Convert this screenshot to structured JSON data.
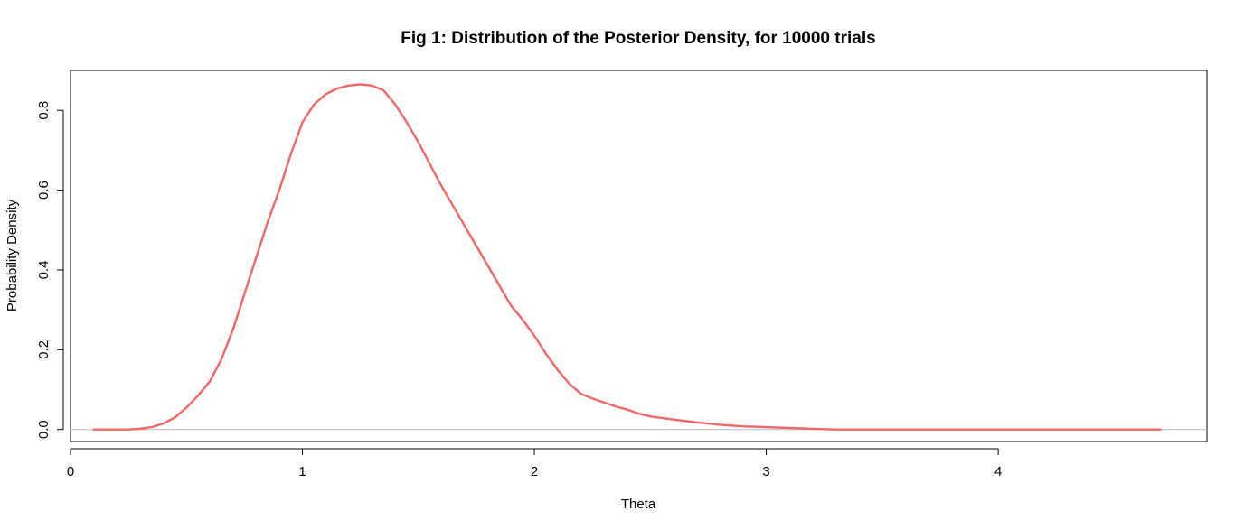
{
  "chart_data": {
    "type": "line",
    "title": "Fig 1: Distribution of the Posterior Density, for 10000 trials",
    "xlabel": "Theta",
    "ylabel": "Probability Density",
    "xlim": [
      0,
      4.9
    ],
    "ylim": [
      -0.03,
      0.9
    ],
    "x_ticks": [
      0,
      1,
      2,
      3,
      4
    ],
    "x_tick_labels": [
      "0",
      "1",
      "2",
      "3",
      "4"
    ],
    "y_ticks": [
      0.0,
      0.2,
      0.4,
      0.6,
      0.8
    ],
    "y_tick_labels": [
      "0.0",
      "0.2",
      "0.4",
      "0.6",
      "0.8"
    ],
    "grid": false,
    "legend": "none",
    "colors": {
      "line": "#ef6767",
      "baseline": "#bebebe",
      "axis": "#000000"
    },
    "series": [
      {
        "x": [
          0.1,
          0.2,
          0.25,
          0.3,
          0.35,
          0.4,
          0.45,
          0.5,
          0.55,
          0.6,
          0.65,
          0.7,
          0.75,
          0.8,
          0.85,
          0.9,
          0.95,
          1.0,
          1.05,
          1.1,
          1.15,
          1.2,
          1.25,
          1.3,
          1.35,
          1.4,
          1.45,
          1.5,
          1.55,
          1.6,
          1.65,
          1.7,
          1.75,
          1.8,
          1.85,
          1.9,
          1.95,
          2.0,
          2.05,
          2.1,
          2.15,
          2.2,
          2.25,
          2.3,
          2.35,
          2.4,
          2.45,
          2.5,
          2.6,
          2.7,
          2.8,
          2.9,
          3.0,
          3.1,
          3.2,
          3.3,
          3.4,
          3.5,
          3.7,
          4.0,
          4.3,
          4.7
        ],
        "values": [
          0.0,
          0.0,
          0.0,
          0.002,
          0.006,
          0.015,
          0.03,
          0.055,
          0.085,
          0.12,
          0.175,
          0.25,
          0.34,
          0.43,
          0.52,
          0.6,
          0.69,
          0.77,
          0.815,
          0.84,
          0.855,
          0.862,
          0.865,
          0.862,
          0.85,
          0.815,
          0.77,
          0.72,
          0.665,
          0.61,
          0.56,
          0.51,
          0.46,
          0.41,
          0.36,
          0.31,
          0.275,
          0.235,
          0.19,
          0.15,
          0.115,
          0.09,
          0.078,
          0.068,
          0.058,
          0.05,
          0.04,
          0.033,
          0.025,
          0.018,
          0.012,
          0.008,
          0.006,
          0.004,
          0.002,
          0.0,
          0.0,
          0.0,
          0.0,
          0.0,
          0.0,
          0.0
        ]
      }
    ]
  }
}
